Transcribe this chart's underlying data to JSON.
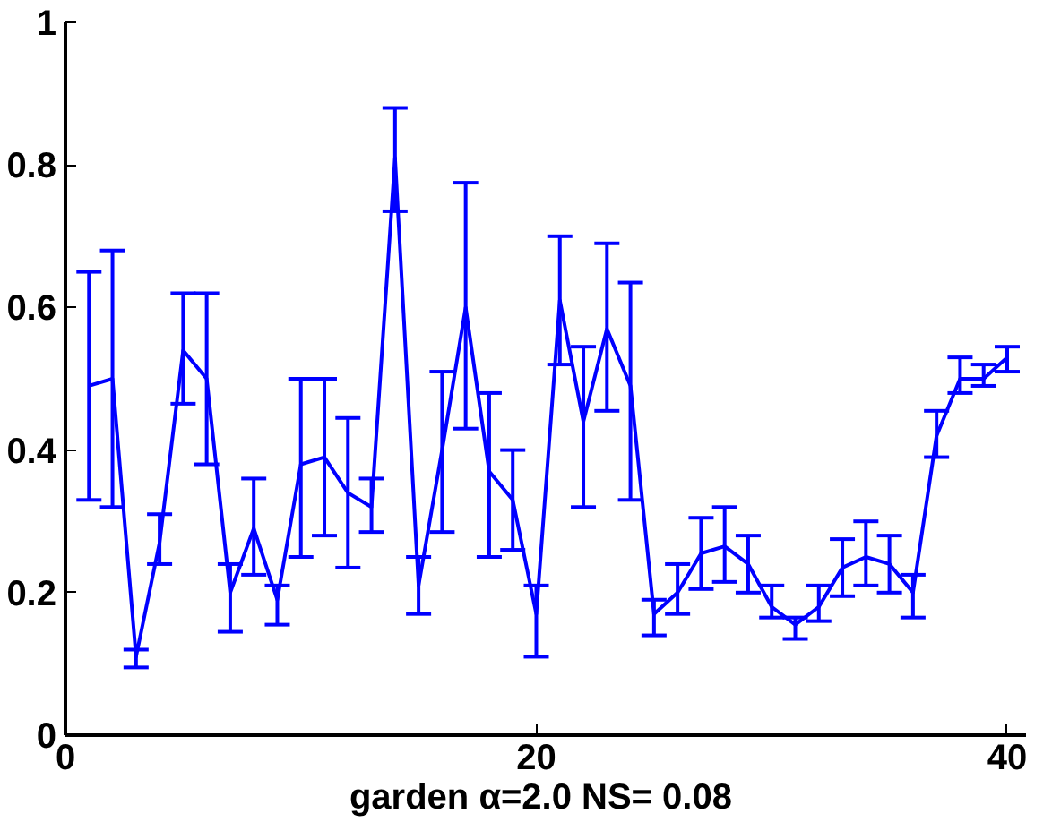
{
  "chart_data": {
    "type": "line",
    "xlabel": "garden  α=2.0 NS= 0.08",
    "x": [
      1,
      2,
      3,
      4,
      5,
      6,
      7,
      8,
      9,
      10,
      11,
      12,
      13,
      14,
      15,
      16,
      17,
      18,
      19,
      20,
      21,
      22,
      23,
      24,
      25,
      26,
      27,
      28,
      29,
      30,
      31,
      32,
      33,
      34,
      35,
      36,
      37,
      38,
      39,
      40
    ],
    "series": [
      {
        "color": "#0000ff",
        "values": [
          0.49,
          0.5,
          0.11,
          0.27,
          0.54,
          0.5,
          0.2,
          0.29,
          0.19,
          0.38,
          0.39,
          0.34,
          0.32,
          0.81,
          0.21,
          0.4,
          0.6,
          0.37,
          0.33,
          0.17,
          0.61,
          0.44,
          0.57,
          0.49,
          0.17,
          0.2,
          0.255,
          0.265,
          0.24,
          0.18,
          0.155,
          0.18,
          0.235,
          0.25,
          0.24,
          0.2,
          0.42,
          0.5,
          0.5,
          0.53
        ],
        "errors": [
          [
            0.33,
            0.65
          ],
          [
            0.32,
            0.68
          ],
          [
            0.095,
            0.12
          ],
          [
            0.24,
            0.31
          ],
          [
            0.465,
            0.62
          ],
          [
            0.38,
            0.62
          ],
          [
            0.145,
            0.24
          ],
          [
            0.225,
            0.36
          ],
          [
            0.155,
            0.21
          ],
          [
            0.25,
            0.5
          ],
          [
            0.28,
            0.5
          ],
          [
            0.235,
            0.445
          ],
          [
            0.285,
            0.36
          ],
          [
            0.735,
            0.88
          ],
          [
            0.17,
            0.25
          ],
          [
            0.285,
            0.51
          ],
          [
            0.43,
            0.775
          ],
          [
            0.25,
            0.48
          ],
          [
            0.26,
            0.4
          ],
          [
            0.11,
            0.21
          ],
          [
            0.52,
            0.7
          ],
          [
            0.32,
            0.545
          ],
          [
            0.455,
            0.69
          ],
          [
            0.33,
            0.635
          ],
          [
            0.14,
            0.19
          ],
          [
            0.17,
            0.24
          ],
          [
            0.205,
            0.305
          ],
          [
            0.215,
            0.32
          ],
          [
            0.2,
            0.28
          ],
          [
            0.165,
            0.21
          ],
          [
            0.135,
            0.165
          ],
          [
            0.16,
            0.21
          ],
          [
            0.195,
            0.275
          ],
          [
            0.21,
            0.3
          ],
          [
            0.2,
            0.28
          ],
          [
            0.165,
            0.225
          ],
          [
            0.39,
            0.455
          ],
          [
            0.48,
            0.53
          ],
          [
            0.49,
            0.52
          ],
          [
            0.51,
            0.545
          ]
        ]
      }
    ],
    "xlim": [
      0,
      40.8
    ],
    "ylim": [
      0,
      1
    ],
    "xticks": [
      0,
      20,
      40
    ],
    "yticks": [
      0,
      0.2,
      0.4,
      0.6,
      0.8,
      1
    ],
    "grid": false,
    "marker": "none",
    "line_style": "solid"
  }
}
